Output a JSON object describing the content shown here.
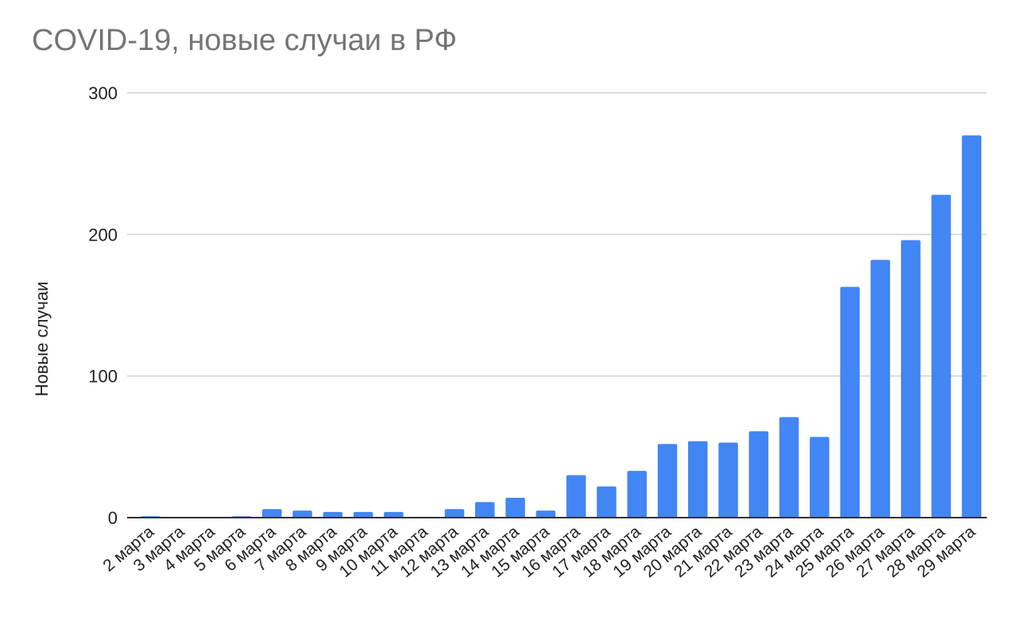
{
  "chart_data": {
    "type": "bar",
    "title": "COVID-19, новые случаи в РФ",
    "xlabel": "",
    "ylabel": "Новые случаи",
    "ylim": [
      0,
      300
    ],
    "yticks": [
      0,
      100,
      200,
      300
    ],
    "grid": true,
    "legend": "none",
    "bar_color": "#4285f4",
    "categories": [
      "2 марта",
      "3 марта",
      "4 марта",
      "5 марта",
      "6 марта",
      "7 марта",
      "8 марта",
      "9 марта",
      "10 марта",
      "11 марта",
      "12 марта",
      "13 марта",
      "14 марта",
      "15 марта",
      "16 марта",
      "17 марта",
      "18 марта",
      "19 марта",
      "20 марта",
      "21 марта",
      "22 марта",
      "23 марта",
      "24 марта",
      "25 марта",
      "26 марта",
      "27 марта",
      "28 марта",
      "29 марта"
    ],
    "values": [
      1,
      0,
      0,
      1,
      6,
      5,
      4,
      4,
      4,
      0,
      6,
      11,
      14,
      5,
      30,
      22,
      33,
      52,
      54,
      53,
      61,
      71,
      57,
      163,
      182,
      196,
      228,
      270
    ]
  }
}
